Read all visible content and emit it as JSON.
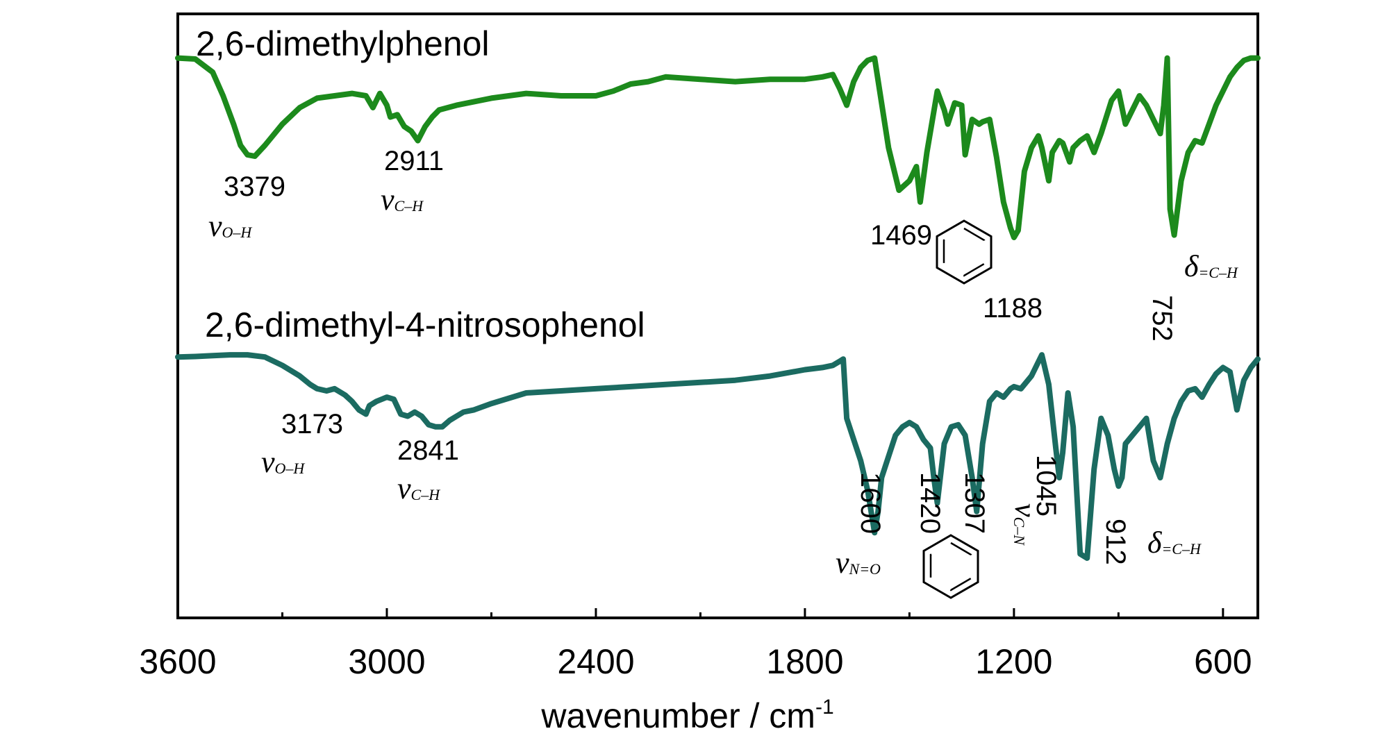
{
  "chart_data": {
    "type": "line",
    "xlabel": "wavenumber / cm",
    "xlabel_sup": "-1",
    "xlim": [
      3600,
      500
    ],
    "x_ticks": [
      "3600",
      "3000",
      "2400",
      "1800",
      "1200",
      "600"
    ],
    "grid": false,
    "series": [
      {
        "name": "2,6-dimethylphenol",
        "color": "#1c8a1c",
        "x": [
          3600,
          3550,
          3500,
          3470,
          3440,
          3420,
          3400,
          3379,
          3350,
          3300,
          3250,
          3200,
          3150,
          3100,
          3060,
          3040,
          3020,
          3000,
          2990,
          2970,
          2950,
          2930,
          2911,
          2890,
          2870,
          2850,
          2800,
          2700,
          2600,
          2500,
          2400,
          2350,
          2300,
          2250,
          2200,
          2100,
          2000,
          1900,
          1800,
          1750,
          1720,
          1700,
          1680,
          1660,
          1640,
          1620,
          1600,
          1560,
          1530,
          1500,
          1480,
          1469,
          1450,
          1420,
          1400,
          1390,
          1370,
          1350,
          1340,
          1320,
          1300,
          1290,
          1270,
          1250,
          1230,
          1210,
          1200,
          1188,
          1170,
          1150,
          1130,
          1120,
          1100,
          1090,
          1070,
          1060,
          1040,
          1030,
          1010,
          990,
          970,
          950,
          920,
          900,
          880,
          860,
          840,
          820,
          800,
          780,
          770,
          760,
          752,
          740,
          720,
          700,
          680,
          660,
          640,
          620,
          600,
          580,
          560,
          540,
          520,
          500
        ],
        "y": [
          76.0,
          75.8,
          73.0,
          68.0,
          62.0,
          57.5,
          55.5,
          55.2,
          57.5,
          62.0,
          65.5,
          67.5,
          68.0,
          68.5,
          68.0,
          65.5,
          68.5,
          66.0,
          63.5,
          64.0,
          61.5,
          60.5,
          58.5,
          61.5,
          63.5,
          65.0,
          66.0,
          67.5,
          68.5,
          68.0,
          68.0,
          69.0,
          70.5,
          71.0,
          72.0,
          71.5,
          71.0,
          71.5,
          71.5,
          72.0,
          72.5,
          69.5,
          66.0,
          71.0,
          74.0,
          75.5,
          76.0,
          57.0,
          48.0,
          50.0,
          53.0,
          45.5,
          56.0,
          69.0,
          65.0,
          62.0,
          66.5,
          66.0,
          55.5,
          63.0,
          62.0,
          62.5,
          63.0,
          55.0,
          45.5,
          40.0,
          38.0,
          39.5,
          52.0,
          57.0,
          59.5,
          57.0,
          50.0,
          56.0,
          58.5,
          58.0,
          54.0,
          57.0,
          58.5,
          59.5,
          56.0,
          60.0,
          67.0,
          69.0,
          62.0,
          65.0,
          68.0,
          66.0,
          63.0,
          60.0,
          66.0,
          76.0,
          44.0,
          38.5,
          50.0,
          56.0,
          58.5,
          58.0,
          62.0,
          66.0,
          69.0,
          72.0,
          74.0,
          75.5,
          76.0,
          76.0
        ]
      },
      {
        "name": "2,6-dimethyl-4-nitrosophenol",
        "color": "#1b6b61",
        "x": [
          3600,
          3550,
          3500,
          3450,
          3400,
          3350,
          3300,
          3250,
          3220,
          3200,
          3173,
          3150,
          3120,
          3100,
          3080,
          3060,
          3050,
          3030,
          3000,
          2980,
          2960,
          2940,
          2920,
          2900,
          2880,
          2860,
          2841,
          2820,
          2800,
          2780,
          2750,
          2700,
          2600,
          2500,
          2400,
          2300,
          2200,
          2100,
          2000,
          1900,
          1800,
          1750,
          1720,
          1700,
          1690,
          1680,
          1660,
          1640,
          1620,
          1600,
          1590,
          1580,
          1560,
          1540,
          1520,
          1500,
          1480,
          1460,
          1440,
          1430,
          1420,
          1400,
          1380,
          1360,
          1340,
          1320,
          1307,
          1290,
          1270,
          1250,
          1230,
          1210,
          1200,
          1180,
          1150,
          1120,
          1100,
          1080,
          1070,
          1060,
          1045,
          1030,
          1010,
          990,
          970,
          950,
          930,
          912,
          900,
          890,
          880,
          860,
          840,
          820,
          800,
          780,
          760,
          740,
          720,
          700,
          680,
          660,
          640,
          620,
          600,
          580,
          560,
          540,
          520,
          500
        ],
        "y": [
          76.5,
          76.6,
          76.8,
          77.0,
          77.0,
          76.5,
          74.5,
          72.0,
          70.0,
          69.0,
          68.5,
          69.0,
          67.5,
          66.0,
          64.0,
          63.0,
          65.0,
          66.0,
          67.0,
          66.5,
          63.0,
          62.5,
          63.5,
          62.5,
          60.5,
          60.0,
          60.0,
          61.5,
          62.5,
          63.5,
          64.0,
          65.5,
          68.0,
          68.5,
          69.0,
          69.5,
          70.0,
          70.5,
          71.0,
          72.0,
          73.5,
          74.0,
          74.5,
          75.5,
          76.0,
          62.0,
          57.0,
          52.0,
          45.0,
          35.0,
          40.0,
          48.0,
          53.0,
          58.0,
          60.0,
          61.0,
          60.0,
          57.0,
          55.0,
          48.0,
          42.0,
          56.0,
          60.0,
          60.5,
          58.0,
          48.0,
          40.0,
          56.0,
          66.0,
          68.0,
          67.0,
          69.0,
          69.5,
          69.0,
          72.0,
          77.0,
          70.0,
          55.0,
          48.0,
          54.0,
          68.0,
          60.0,
          30.0,
          29.0,
          50.0,
          62.0,
          58.0,
          50.0,
          46.0,
          48.0,
          56.0,
          58.0,
          60.0,
          62.0,
          52.0,
          48.0,
          56.0,
          62.0,
          66.0,
          68.5,
          69.0,
          67.0,
          70.0,
          72.5,
          74.0,
          73.0,
          64.0,
          71.0,
          74.0,
          76.0
        ]
      }
    ],
    "annotations": [
      {
        "series": 0,
        "x": 3379,
        "label": "3379",
        "mode": "ν",
        "mode_sub": "O–H"
      },
      {
        "series": 0,
        "x": 2911,
        "label": "2911",
        "mode": "ν",
        "mode_sub": "C–H"
      },
      {
        "series": 0,
        "x": 1469,
        "label": "1469",
        "icon": "benzene-ring"
      },
      {
        "series": 0,
        "x": 1188,
        "label": "1188"
      },
      {
        "series": 0,
        "x": 752,
        "label": "752",
        "mode": "δ",
        "mode_sub": "=C–H"
      },
      {
        "series": 1,
        "x": 3173,
        "label": "3173",
        "mode": "ν",
        "mode_sub": "O–H"
      },
      {
        "series": 1,
        "x": 2841,
        "label": "2841",
        "mode": "ν",
        "mode_sub": "C–H"
      },
      {
        "series": 1,
        "x": 1600,
        "label": "1600",
        "mode": "ν",
        "mode_sub": "N=O"
      },
      {
        "series": 1,
        "x": 1420,
        "label": "1420",
        "icon": "benzene-ring"
      },
      {
        "series": 1,
        "x": 1307,
        "label": "1307"
      },
      {
        "series": 1,
        "x": 1045,
        "label": "1045",
        "mode": "ν",
        "mode_sub": "C–N"
      },
      {
        "series": 1,
        "x": 912,
        "label": "912",
        "mode": "δ",
        "mode_sub": "=C–H"
      }
    ]
  }
}
